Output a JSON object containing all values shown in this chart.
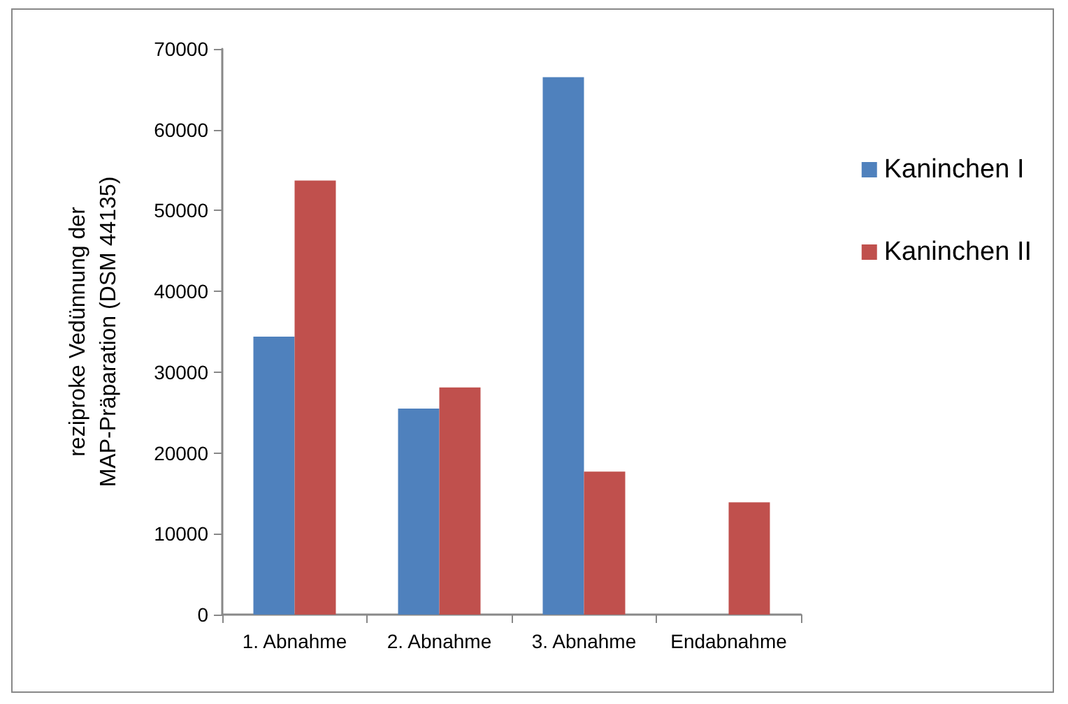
{
  "chart_data": {
    "type": "bar",
    "ylabel": "reziproke Vedünnung der\nMAP-Präparation (DSM 44135)",
    "categories": [
      "1. Abnahme",
      "2. Abnahme",
      "3. Abnahme",
      "Endabnahme"
    ],
    "series": [
      {
        "name": "Kaninchen I",
        "color": "#4f81bd",
        "values": [
          34400,
          25500,
          66500,
          null
        ]
      },
      {
        "name": "Kaninchen II",
        "color": "#c0504d",
        "values": [
          53700,
          28100,
          17700,
          13900
        ]
      }
    ],
    "ylim": [
      0,
      70000
    ],
    "yticks": [
      0,
      10000,
      20000,
      30000,
      40000,
      50000,
      60000,
      70000
    ],
    "grid": false,
    "legend": "right"
  }
}
